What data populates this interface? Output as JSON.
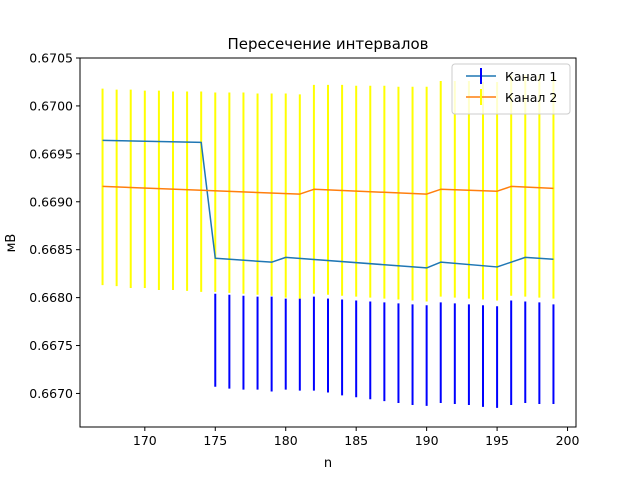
{
  "chart_data": {
    "type": "line",
    "title": "Пересечение интервалов",
    "xlabel": "n",
    "ylabel": "мВ",
    "xlim": [
      165.4,
      200.6
    ],
    "ylim": [
      0.66665,
      0.6705
    ],
    "x_ticks": [
      170,
      175,
      180,
      185,
      190,
      195,
      200
    ],
    "x_tick_labels": [
      "170",
      "175",
      "180",
      "185",
      "190",
      "195",
      "200"
    ],
    "y_ticks": [
      0.667,
      0.6675,
      0.668,
      0.6685,
      0.669,
      0.6695,
      0.67,
      0.6705
    ],
    "y_tick_labels": [
      "0.6670",
      "0.6675",
      "0.6680",
      "0.6685",
      "0.6690",
      "0.6695",
      "0.6700",
      "0.6705"
    ],
    "grid": false,
    "legend": {
      "position": "upper right",
      "entries": [
        "Канал 1",
        "Канал 2"
      ]
    },
    "series": [
      {
        "name": "Канал 1",
        "line_color": "#1f77b4",
        "errorbar_color": "#0000ff",
        "x": [
          167,
          174,
          175,
          179,
          180,
          190,
          191,
          195,
          197,
          199
        ],
        "y": [
          0.66964,
          0.66962,
          0.66841,
          0.66837,
          0.66842,
          0.66831,
          0.66837,
          0.66832,
          0.66842,
          0.6684
        ],
        "errorbars": {
          "x": [
            175,
            176,
            177,
            178,
            179,
            180,
            181,
            182,
            183,
            184,
            185,
            186,
            187,
            188,
            189,
            190,
            191,
            192,
            193,
            194,
            195,
            196,
            197,
            198,
            199
          ],
          "lower": [
            0.66707,
            0.66705,
            0.66704,
            0.66704,
            0.66702,
            0.66704,
            0.66703,
            0.66703,
            0.66701,
            0.66698,
            0.66696,
            0.66694,
            0.66692,
            0.6669,
            0.66688,
            0.66687,
            0.6669,
            0.66689,
            0.66688,
            0.66686,
            0.66685,
            0.66688,
            0.6669,
            0.66689,
            0.66689
          ],
          "upper": [
            0.66804,
            0.66803,
            0.66802,
            0.66801,
            0.66801,
            0.66799,
            0.66799,
            0.66801,
            0.66799,
            0.66798,
            0.66797,
            0.66796,
            0.66795,
            0.66794,
            0.66793,
            0.66792,
            0.66795,
            0.66794,
            0.66793,
            0.66792,
            0.66791,
            0.66797,
            0.66796,
            0.66795,
            0.66793
          ]
        }
      },
      {
        "name": "Канал 2",
        "line_color": "#ff7f0e",
        "errorbar_color": "#ffff00",
        "x": [
          167,
          174,
          181,
          182,
          190,
          191,
          195,
          196,
          199
        ],
        "y": [
          0.66916,
          0.66912,
          0.66908,
          0.66913,
          0.66908,
          0.66913,
          0.66911,
          0.66916,
          0.66914
        ],
        "errorbars": {
          "x": [
            167,
            168,
            169,
            170,
            171,
            172,
            173,
            174,
            175,
            176,
            177,
            178,
            179,
            180,
            181,
            182,
            183,
            184,
            185,
            186,
            187,
            188,
            189,
            190,
            191,
            192,
            193,
            194,
            195,
            196,
            197,
            198,
            199
          ],
          "lower": [
            0.66813,
            0.66812,
            0.6681,
            0.6681,
            0.66808,
            0.66808,
            0.66807,
            0.66806,
            0.66806,
            0.66805,
            0.66804,
            0.66803,
            0.66802,
            0.668,
            0.66799,
            0.66804,
            0.66803,
            0.66802,
            0.66801,
            0.668,
            0.66799,
            0.66798,
            0.66797,
            0.66796,
            0.66801,
            0.668,
            0.66799,
            0.66798,
            0.66797,
            0.66802,
            0.66801,
            0.668,
            0.66799
          ],
          "upper": [
            0.67018,
            0.67017,
            0.67017,
            0.67016,
            0.67016,
            0.67015,
            0.67015,
            0.67015,
            0.67014,
            0.67014,
            0.67014,
            0.67013,
            0.67013,
            0.67013,
            0.67012,
            0.67022,
            0.67022,
            0.67022,
            0.67021,
            0.67021,
            0.67021,
            0.6702,
            0.6702,
            0.6702,
            0.67026,
            0.67026,
            0.67026,
            0.67025,
            0.67025,
            0.67032,
            0.67032,
            0.67032,
            0.67031
          ]
        }
      }
    ]
  }
}
